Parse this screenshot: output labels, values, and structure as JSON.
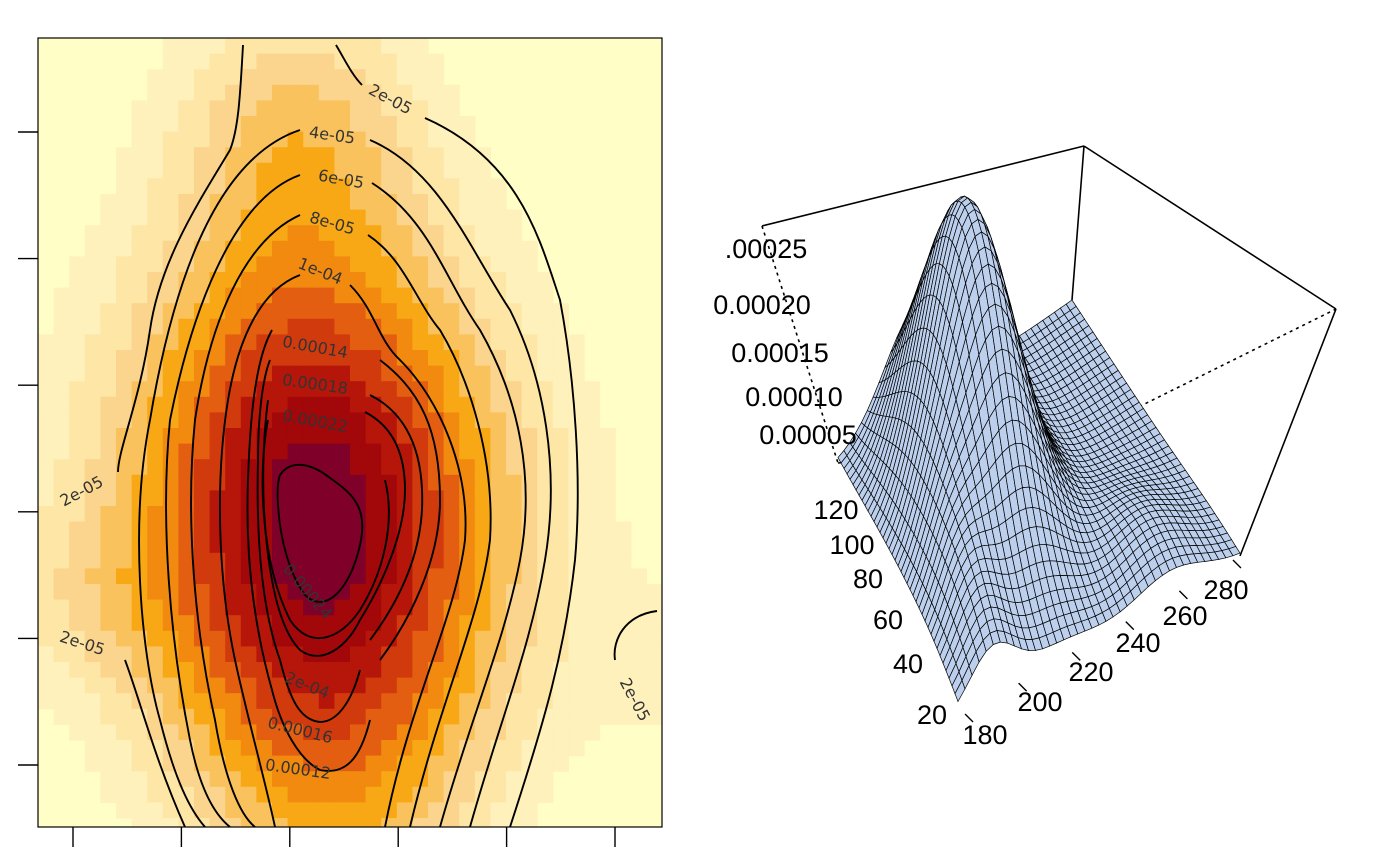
{
  "chart_data": [
    {
      "type": "heatmap",
      "subtype": "filled-contour-image",
      "title": "",
      "xlabel": "",
      "ylabel": "",
      "x_tick_count": 6,
      "y_tick_count": 6,
      "x_tick_labels_shown": false,
      "y_tick_labels_shown": false,
      "colors": [
        "#fffec6",
        "#fff1bb",
        "#fde6a6",
        "#fbd58e",
        "#f9c25c",
        "#f7a814",
        "#f18a0f",
        "#e45e11",
        "#d13a0d",
        "#b61609",
        "#a20709",
        "#7f0028"
      ],
      "contour_levels": [
        2e-05,
        4e-05,
        6e-05,
        8e-05,
        0.0001,
        0.00012,
        0.00014,
        0.00016,
        0.00018,
        0.0002,
        0.00022,
        0.00024
      ],
      "contour_labels": [
        "2e-05",
        "2e-05",
        "2e-05",
        "2e-05",
        "4e-05",
        "6e-05",
        "8e-05",
        "1e-04",
        "0.00014",
        "0.00018",
        "0.00022",
        "0.00024",
        "2e-04",
        "0.00016",
        "0.00012"
      ]
    },
    {
      "type": "surface",
      "title": "",
      "surface_color": "#bcd0ee",
      "mesh_color": "#000000",
      "x_ticks": [
        "180",
        "200",
        "220",
        "240",
        "260",
        "280"
      ],
      "y_ticks": [
        "20",
        "40",
        "60",
        "80",
        "100",
        "120"
      ],
      "z_ticks": [
        ".00025",
        "0.00020",
        "0.00015",
        "0.00010",
        "0.00005"
      ],
      "z_peak": 0.00027
    }
  ]
}
